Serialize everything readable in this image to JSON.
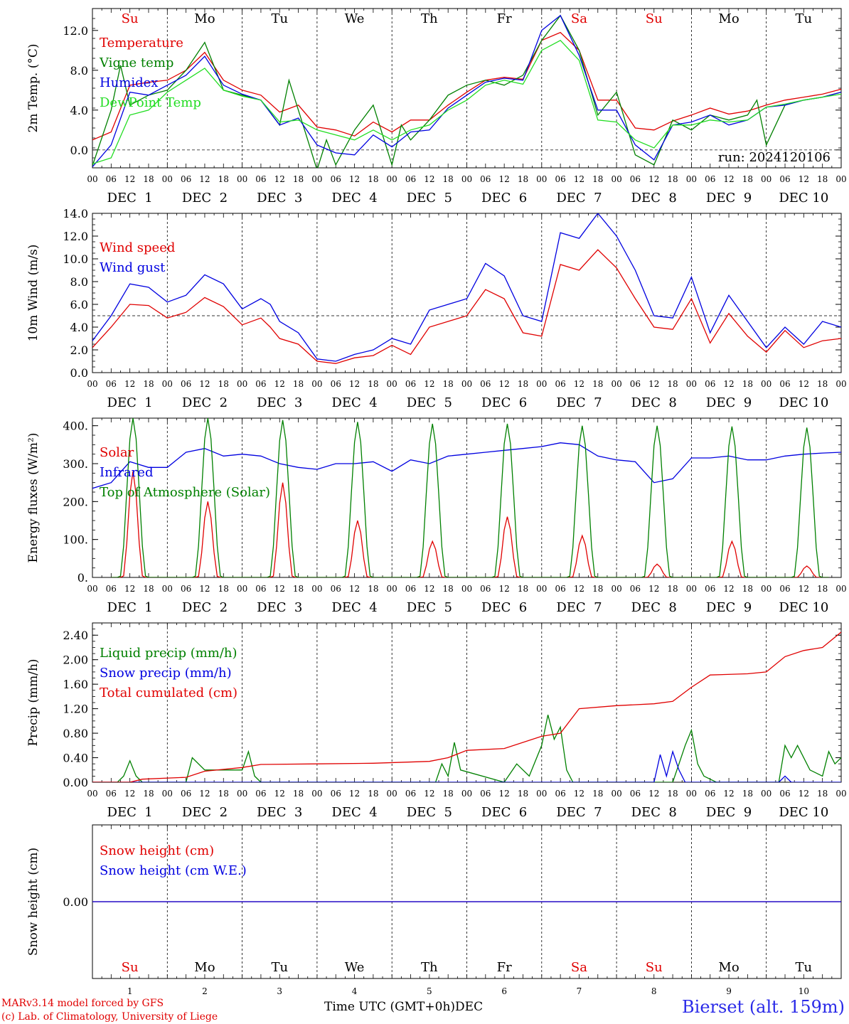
{
  "run_label": "run: 2024120106",
  "station": "Bierset (alt. 159m)",
  "x_axis_title": "Time UTC (GMT+0h)",
  "x_axis_month": "DEC",
  "credit_line1": "MARv3.14 model forced by GFS",
  "credit_line2": "(c) Lab. of Climatology, University of Liege",
  "day_names": [
    "Su",
    "Mo",
    "Tu",
    "We",
    "Th",
    "Fr",
    "Sa",
    "Su",
    "Mo",
    "Tu"
  ],
  "weekend_color": "#e00000",
  "weekday_color": "#000000",
  "hour_ticks": [
    "00",
    "06",
    "12",
    "18"
  ],
  "day_labels": [
    "DEC  1",
    "DEC  2",
    "DEC  3",
    "DEC  4",
    "DEC  5",
    "DEC  6",
    "DEC  7",
    "DEC  8",
    "DEC  9",
    "DEC 10"
  ],
  "day_numbers": [
    "1",
    "2",
    "3",
    "4",
    "5",
    "6",
    "7",
    "8",
    "9",
    "10"
  ],
  "colors": {
    "red": "#e00000",
    "blue": "#0000e0",
    "green": "#008000",
    "lightgreen": "#22dd22",
    "darkblue": "#0000b0"
  },
  "chart_data": [
    {
      "type": "line",
      "ylabel": "2m Temp. (°C)",
      "ylim": [
        -1.8,
        14.2
      ],
      "yticks": [
        0,
        4,
        8,
        12
      ],
      "ytick_labels": [
        "0.0",
        "4.0",
        "8.0",
        "12.0"
      ],
      "ref_line": 0,
      "x_unit": "hours since DEC 1 00 UTC",
      "series": [
        {
          "name": "Temperature",
          "color": "#e00000",
          "x": [
            0,
            6,
            12,
            18,
            24,
            30,
            36,
            42,
            48,
            54,
            60,
            66,
            72,
            78,
            84,
            90,
            96,
            102,
            108,
            114,
            120,
            126,
            132,
            138,
            144,
            150,
            156,
            162,
            168,
            174,
            180,
            186,
            192,
            198,
            204,
            210,
            216,
            222,
            228,
            234,
            240
          ],
          "y": [
            1.0,
            1.8,
            6.5,
            6.8,
            7.0,
            8.0,
            9.8,
            7.0,
            6.0,
            5.5,
            3.8,
            4.5,
            2.3,
            2.0,
            1.4,
            2.8,
            1.8,
            3.0,
            3.0,
            4.5,
            5.8,
            7.0,
            7.3,
            7.1,
            11.0,
            11.8,
            10.0,
            5.0,
            5.0,
            2.2,
            2.0,
            2.9,
            3.5,
            4.2,
            3.6,
            3.9,
            4.5,
            5.0,
            5.3,
            5.6,
            6.1
          ]
        },
        {
          "name": "Vigne temp",
          "color": "#008000",
          "x": [
            0,
            6,
            9,
            12,
            18,
            24,
            30,
            36,
            42,
            48,
            54,
            60,
            63,
            66,
            72,
            75,
            78,
            84,
            90,
            96,
            99,
            102,
            108,
            114,
            120,
            126,
            132,
            138,
            144,
            150,
            156,
            162,
            168,
            174,
            180,
            186,
            192,
            198,
            204,
            210,
            213,
            216,
            222,
            228,
            234,
            240
          ],
          "y": [
            -1.6,
            4.0,
            8.5,
            4.5,
            5.5,
            6.0,
            8.0,
            10.8,
            6.0,
            5.5,
            5.0,
            2.5,
            7.0,
            4.0,
            -2.0,
            1.0,
            -1.5,
            2.0,
            4.5,
            -1.5,
            2.5,
            1.0,
            3.0,
            5.5,
            6.5,
            7.0,
            6.5,
            7.5,
            11.0,
            13.5,
            10.0,
            3.5,
            5.8,
            -0.5,
            -1.5,
            3.0,
            2.0,
            3.5,
            3.0,
            3.5,
            5.0,
            0.5,
            4.5,
            5.0,
            5.3,
            5.8
          ]
        },
        {
          "name": "Humidex",
          "color": "#0000e0",
          "x": [
            0,
            6,
            12,
            18,
            24,
            30,
            36,
            42,
            48,
            54,
            60,
            66,
            72,
            78,
            84,
            90,
            96,
            102,
            108,
            114,
            120,
            126,
            132,
            138,
            144,
            150,
            156,
            162,
            168,
            174,
            180,
            186,
            192,
            198,
            204,
            210,
            216,
            222,
            228,
            234,
            240
          ],
          "y": [
            -1.7,
            0.5,
            5.8,
            5.5,
            6.5,
            7.5,
            9.4,
            6.5,
            5.6,
            5.0,
            2.5,
            3.2,
            0.5,
            -0.3,
            -0.5,
            1.5,
            0.3,
            1.8,
            2.0,
            4.2,
            5.5,
            6.8,
            7.2,
            7.0,
            12.0,
            13.5,
            9.5,
            4.0,
            4.0,
            0.5,
            -1.0,
            2.5,
            2.8,
            3.5,
            2.5,
            3.0,
            4.3,
            4.5,
            5.0,
            5.3,
            5.8
          ]
        },
        {
          "name": "DewPoint Temp",
          "color": "#22dd22",
          "x": [
            0,
            6,
            12,
            18,
            24,
            30,
            36,
            42,
            48,
            54,
            60,
            66,
            72,
            78,
            84,
            90,
            96,
            102,
            108,
            114,
            120,
            126,
            132,
            138,
            144,
            150,
            156,
            162,
            168,
            174,
            180,
            186,
            192,
            198,
            204,
            210,
            216,
            222,
            228,
            234,
            240
          ],
          "y": [
            -1.4,
            -0.8,
            3.5,
            4.0,
            5.8,
            7.0,
            8.2,
            6.0,
            5.4,
            5.0,
            2.8,
            3.0,
            2.0,
            1.5,
            1.0,
            2.0,
            1.0,
            2.0,
            2.5,
            4.0,
            5.0,
            6.5,
            7.0,
            6.6,
            10.0,
            11.0,
            9.0,
            3.0,
            2.8,
            1.0,
            0.2,
            2.5,
            2.5,
            3.0,
            2.8,
            3.0,
            4.3,
            4.6,
            5.0,
            5.3,
            5.6
          ]
        }
      ]
    },
    {
      "type": "line",
      "ylabel": "10m Wind (m/s)",
      "ylim": [
        0,
        14
      ],
      "yticks": [
        0,
        2,
        4,
        6,
        8,
        10,
        12,
        14
      ],
      "ytick_labels": [
        "0.0",
        "2.0",
        "4.0",
        "6.0",
        "8.0",
        "10.0",
        "12.0",
        "14.0"
      ],
      "ref_line": 5,
      "series": [
        {
          "name": "Wind speed",
          "color": "#e00000",
          "x": [
            0,
            6,
            12,
            18,
            24,
            30,
            36,
            42,
            48,
            54,
            57,
            60,
            66,
            72,
            78,
            84,
            90,
            96,
            102,
            108,
            114,
            120,
            126,
            132,
            138,
            144,
            150,
            156,
            162,
            168,
            174,
            180,
            186,
            192,
            198,
            204,
            210,
            216,
            222,
            228,
            234,
            240
          ],
          "y": [
            2.2,
            4.0,
            6.0,
            5.9,
            4.8,
            5.3,
            6.6,
            5.8,
            4.2,
            4.8,
            4.0,
            3.0,
            2.5,
            1.0,
            0.8,
            1.3,
            1.5,
            2.4,
            1.6,
            4.0,
            4.5,
            5.0,
            7.3,
            6.5,
            3.5,
            3.2,
            9.5,
            9.0,
            10.8,
            9.2,
            6.5,
            4.0,
            3.8,
            6.5,
            2.6,
            5.2,
            3.2,
            1.8,
            3.7,
            2.2,
            2.8,
            3.0
          ]
        },
        {
          "name": "Wind gust",
          "color": "#0000e0",
          "x": [
            0,
            6,
            12,
            18,
            24,
            30,
            36,
            42,
            48,
            54,
            57,
            60,
            66,
            72,
            78,
            84,
            90,
            96,
            102,
            108,
            114,
            120,
            126,
            132,
            138,
            144,
            150,
            156,
            162,
            168,
            174,
            180,
            186,
            192,
            198,
            204,
            210,
            216,
            222,
            228,
            234,
            240
          ],
          "y": [
            2.8,
            5.0,
            7.8,
            7.5,
            6.2,
            6.8,
            8.6,
            7.8,
            5.6,
            6.5,
            6.0,
            4.5,
            3.5,
            1.2,
            1.0,
            1.6,
            2.0,
            3.0,
            2.5,
            5.5,
            6.0,
            6.5,
            9.6,
            8.5,
            5.0,
            4.5,
            12.3,
            11.8,
            14.0,
            12.0,
            9.0,
            5.0,
            4.8,
            8.4,
            3.5,
            6.8,
            4.5,
            2.2,
            4.0,
            2.5,
            4.5,
            4.0
          ]
        }
      ]
    },
    {
      "type": "line",
      "ylabel": "Energy fluxes (W/m²)",
      "ylim": [
        0,
        420
      ],
      "yticks": [
        0,
        100,
        200,
        300,
        400
      ],
      "ytick_labels": [
        "0.",
        "100.",
        "200.",
        "300.",
        "400."
      ],
      "series": [
        {
          "name": "Solar",
          "color": "#e00000",
          "peaks": [
            280,
            200,
            250,
            150,
            95,
            160,
            110,
            35,
            95,
            30
          ]
        },
        {
          "name": "Infrared",
          "color": "#0000e0",
          "x": [
            0,
            6,
            12,
            18,
            24,
            30,
            36,
            42,
            48,
            54,
            60,
            66,
            72,
            78,
            84,
            90,
            96,
            102,
            108,
            114,
            120,
            126,
            132,
            138,
            144,
            150,
            156,
            162,
            168,
            174,
            180,
            186,
            192,
            198,
            204,
            210,
            216,
            222,
            228,
            234,
            240
          ],
          "y": [
            235,
            250,
            305,
            290,
            290,
            330,
            340,
            320,
            325,
            320,
            300,
            290,
            285,
            300,
            300,
            305,
            280,
            310,
            300,
            320,
            325,
            330,
            335,
            340,
            345,
            355,
            350,
            320,
            310,
            305,
            250,
            260,
            315,
            315,
            320,
            310,
            310,
            320,
            325,
            328,
            330
          ]
        },
        {
          "name": "Top of Atmosphere (Solar)",
          "color": "#008000",
          "peaks": [
            420,
            420,
            415,
            410,
            405,
            405,
            400,
            400,
            398,
            395
          ]
        }
      ]
    },
    {
      "type": "line",
      "ylabel": "Precip (mm/h)",
      "ylim": [
        0,
        2.6
      ],
      "yticks": [
        0,
        0.4,
        0.8,
        1.2,
        1.6,
        2.0,
        2.4
      ],
      "ytick_labels": [
        "0.00",
        "0.40",
        "0.80",
        "1.20",
        "1.60",
        "2.00",
        "2.40"
      ],
      "series": [
        {
          "name": "Liquid precip (mm/h)",
          "color": "#008000",
          "x": [
            0,
            8,
            10,
            12,
            14,
            16,
            30,
            32,
            36,
            48,
            50,
            52,
            54,
            110,
            112,
            114,
            116,
            118,
            132,
            136,
            140,
            144,
            146,
            148,
            150,
            152,
            154,
            186,
            188,
            190,
            192,
            194,
            196,
            200,
            220,
            222,
            224,
            226,
            230,
            234,
            236,
            238,
            240
          ],
          "y": [
            0,
            0,
            0.1,
            0.35,
            0.1,
            0,
            0,
            0.4,
            0.2,
            0.2,
            0.5,
            0.1,
            0,
            0,
            0.3,
            0.1,
            0.65,
            0.2,
            0,
            0.3,
            0.1,
            0.6,
            1.1,
            0.7,
            0.9,
            0.2,
            0,
            0,
            0.3,
            0.6,
            0.85,
            0.3,
            0.1,
            0,
            0,
            0.6,
            0.4,
            0.6,
            0.2,
            0.1,
            0.5,
            0.3,
            0.4
          ]
        },
        {
          "name": "Snow precip (mm/h)",
          "color": "#0000e0",
          "x": [
            0,
            180,
            182,
            184,
            186,
            188,
            190,
            200,
            220,
            222,
            224,
            240
          ],
          "y": [
            0,
            0,
            0.45,
            0.1,
            0.5,
            0.2,
            0,
            0,
            0,
            0.1,
            0,
            0
          ]
        },
        {
          "name": "Total cumulated (cm)",
          "color": "#e00000",
          "x": [
            0,
            12,
            16,
            30,
            36,
            48,
            54,
            72,
            90,
            108,
            114,
            120,
            132,
            144,
            150,
            156,
            168,
            180,
            186,
            192,
            198,
            210,
            216,
            222,
            228,
            234,
            240
          ],
          "y": [
            0,
            0,
            0.05,
            0.08,
            0.18,
            0.24,
            0.29,
            0.3,
            0.31,
            0.34,
            0.4,
            0.52,
            0.55,
            0.75,
            0.8,
            1.2,
            1.25,
            1.28,
            1.32,
            1.55,
            1.75,
            1.77,
            1.8,
            2.05,
            2.15,
            2.2,
            2.45
          ]
        }
      ]
    },
    {
      "type": "line",
      "ylabel": "Snow height (cm)",
      "ylim": [
        -1,
        1
      ],
      "yticks": [
        0
      ],
      "ytick_labels": [
        "0.00"
      ],
      "series": [
        {
          "name": "Snow height (cm)",
          "color": "#e00000",
          "x": [
            0,
            240
          ],
          "y": [
            0,
            0
          ]
        },
        {
          "name": "Snow height (cm W.E.)",
          "color": "#0000e0",
          "x": [
            0,
            240
          ],
          "y": [
            0,
            0
          ]
        }
      ]
    }
  ]
}
